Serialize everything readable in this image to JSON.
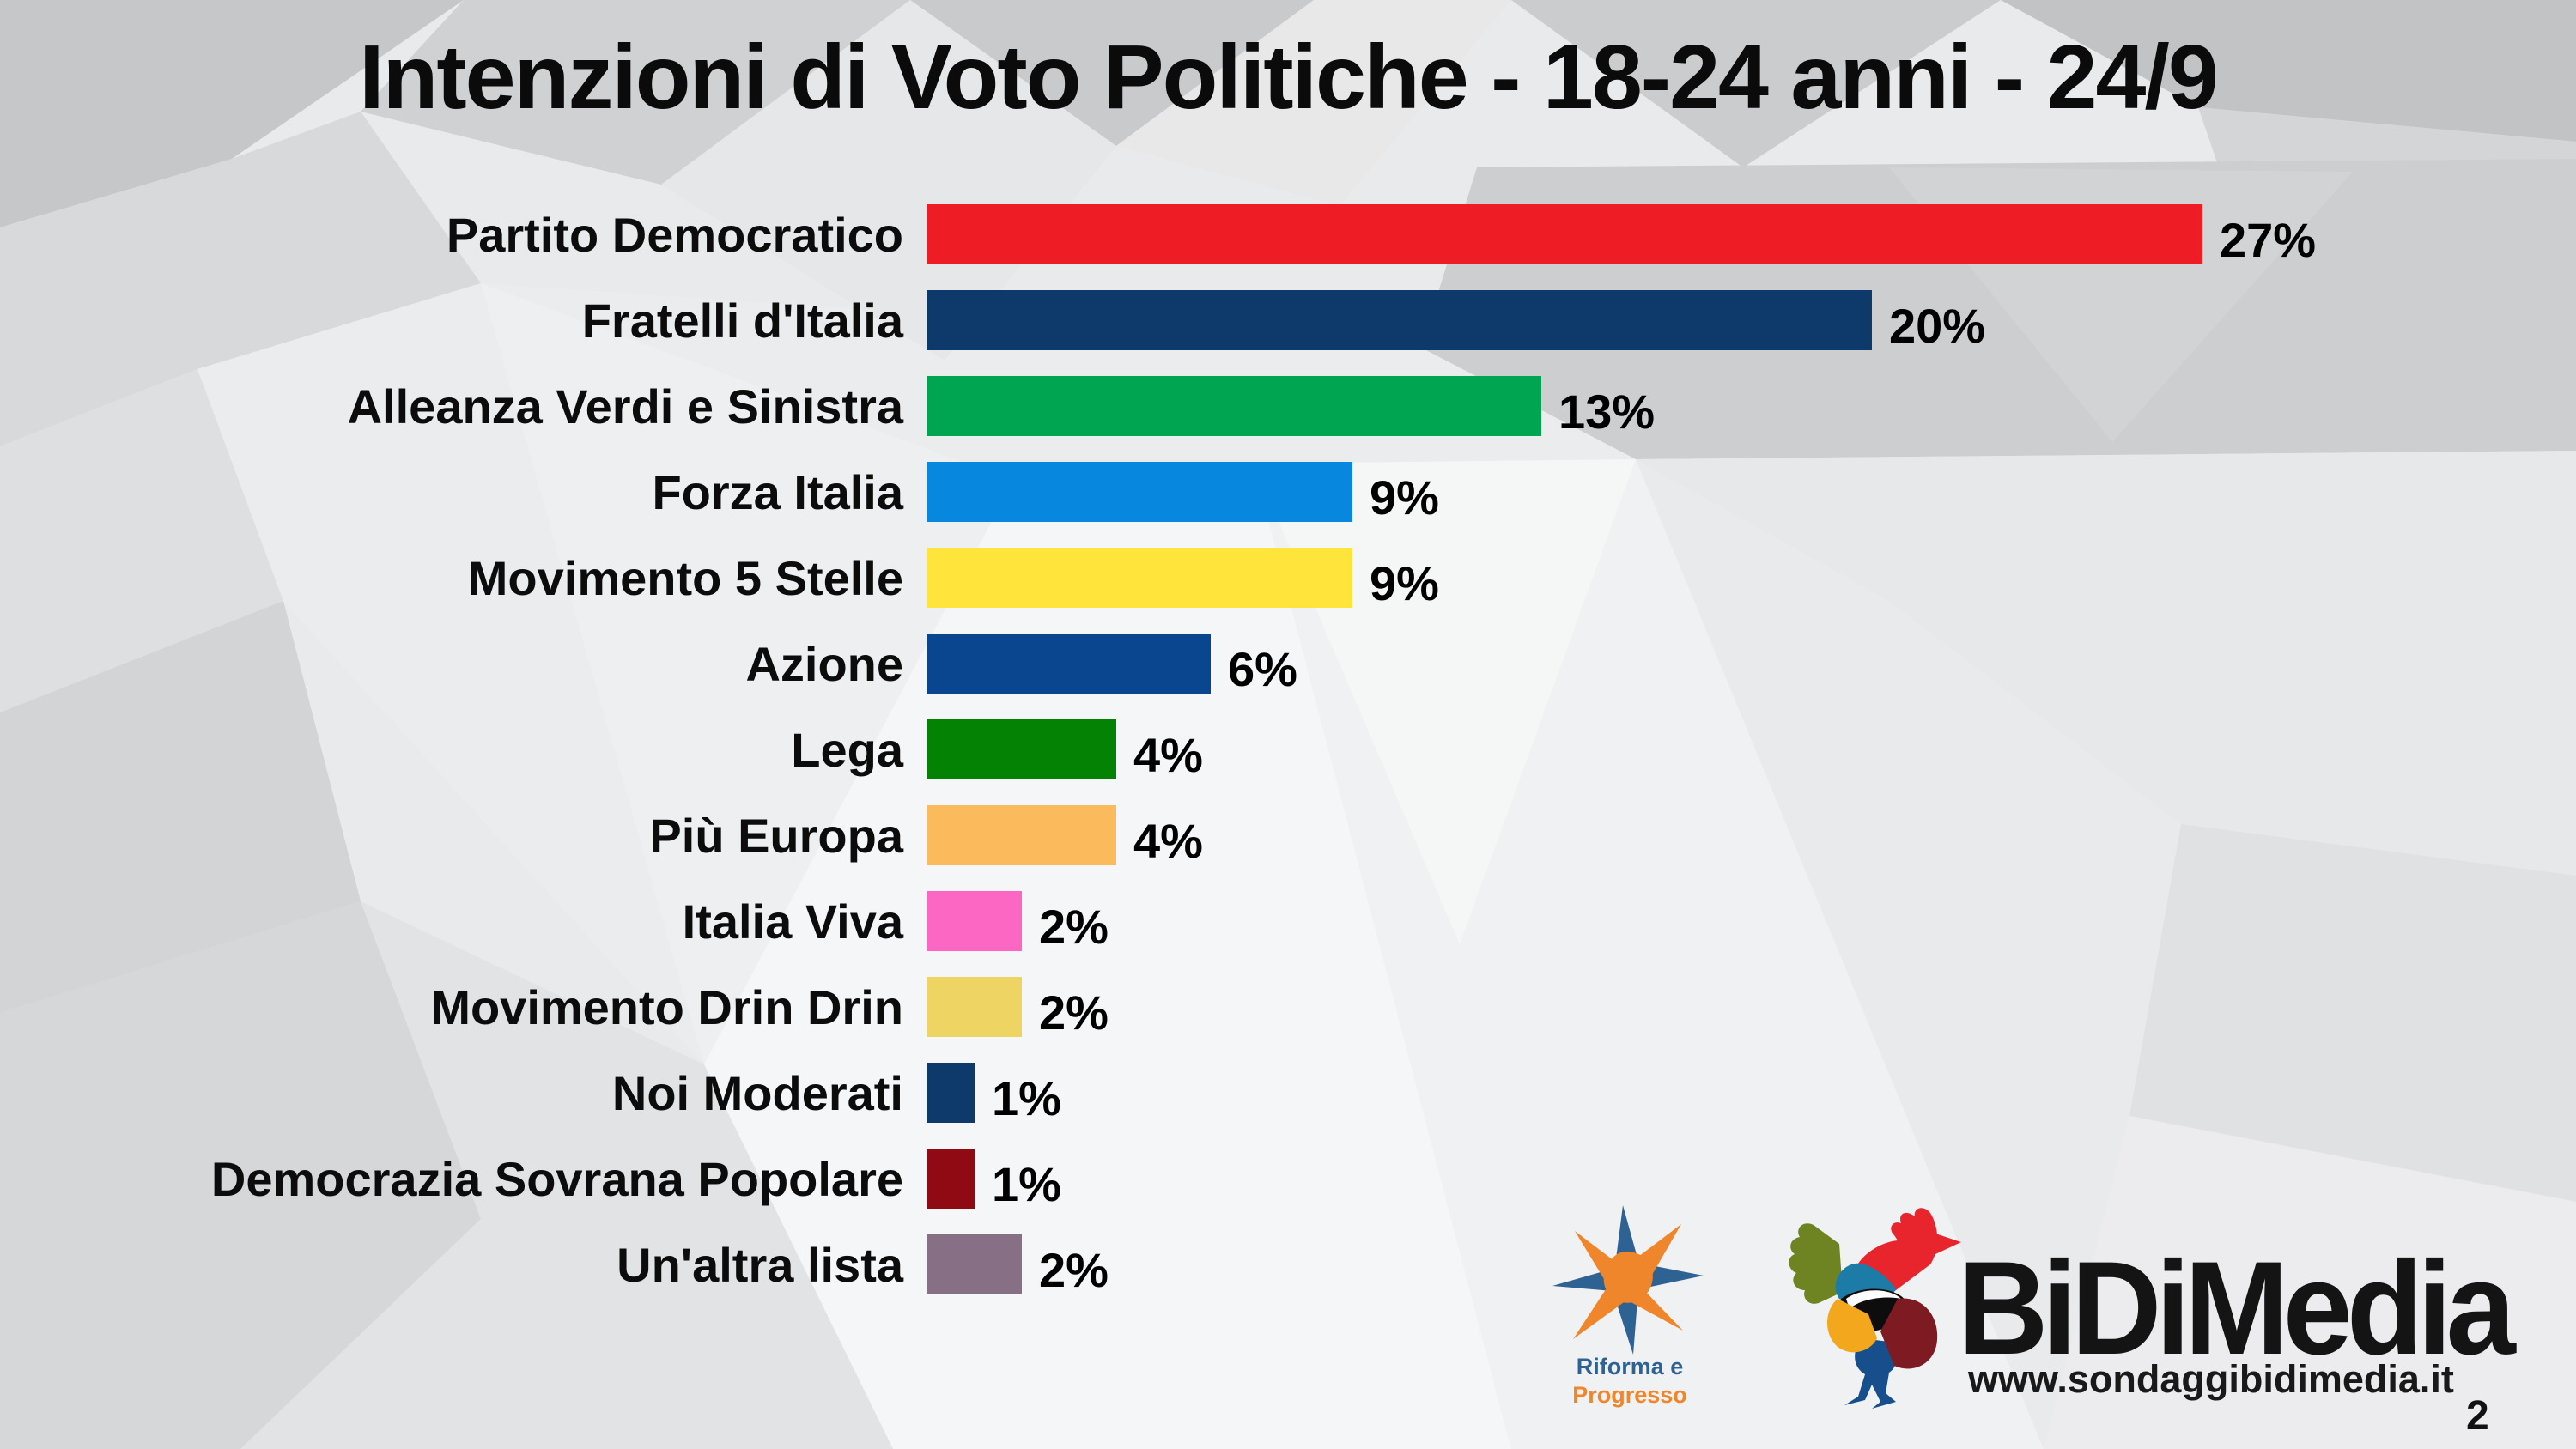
{
  "title": "Intenzioni di Voto Politiche - 18-24 anni - 24/9",
  "page_number": "2",
  "chart_data": {
    "type": "bar",
    "orientation": "horizontal",
    "title": "Intenzioni di Voto Politiche - 18-24 anni - 24/9",
    "unit": "%",
    "xlim": [
      0,
      30
    ],
    "grid": false,
    "legend": "none",
    "categories": [
      "Partito Democratico",
      "Fratelli d'Italia",
      "Alleanza Verdi e Sinistra",
      "Forza Italia",
      "Movimento 5 Stelle",
      "Azione",
      "Lega",
      "Più Europa",
      "Italia Viva",
      "Movimento Drin Drin",
      "Noi Moderati",
      "Democrazia Sovrana Popolare",
      "Un'altra lista"
    ],
    "values": [
      27,
      20,
      13,
      9,
      9,
      6,
      4,
      4,
      2,
      2,
      1,
      1,
      2
    ],
    "value_labels": [
      "27%",
      "20%",
      "13%",
      "9%",
      "9%",
      "6%",
      "4%",
      "4%",
      "2%",
      "2%",
      "1%",
      "1%",
      "2%"
    ],
    "bar_colors": [
      "#ee1c25",
      "#0e3a6b",
      "#00a551",
      "#0887de",
      "#ffe53b",
      "#0a4590",
      "#048204",
      "#fbba5c",
      "#fc67c4",
      "#eed463",
      "#0e3a6b",
      "#8f0a12",
      "#876f85"
    ]
  },
  "footer": {
    "riforma_progresso": {
      "icon": "starburst-icon",
      "line1": "Riforma e",
      "line2": "Progresso",
      "line1_color": "#2e6293",
      "line2_color": "#f0862c"
    },
    "bidimedia": {
      "icon": "rooster-icon",
      "wordmark": "BiDiMedia",
      "url": "www.sondaggibidimedia.it",
      "wordmark_color": "#141414"
    }
  },
  "style_colors": {
    "text": "#0d0d0d",
    "background_base": "#e9eaeb"
  }
}
